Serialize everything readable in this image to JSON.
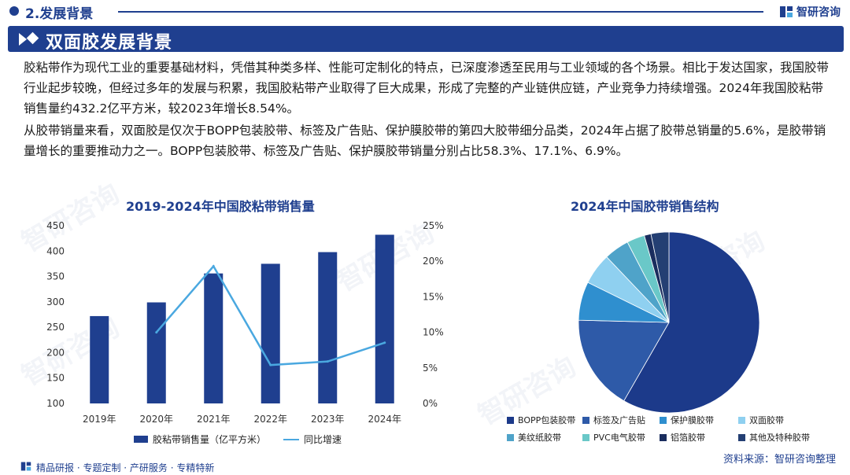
{
  "header": {
    "section": "2.发展背景",
    "brand": "智研咨询"
  },
  "banner": {
    "title": "双面胶发展背景"
  },
  "paragraphs": [
    "胶粘带作为现代工业的重要基础材料，凭借其种类多样、性能可定制化的特点，已深度渗透至民用与工业领域的各个场景。相比于发达国家，我国胶带行业起步较晚，但经过多年的发展与积累，我国胶粘带产业取得了巨大成果，形成了完整的产业链供应链，产业竞争力持续增强。2024年我国胶粘带销售量约432.2亿平方米，较2023年增长8.54%。",
    "从胶带销量来看，双面胶是仅次于BOPP包装胶带、标签及广告贴、保护膜胶带的第四大胶带细分品类，2024年占据了胶带总销量的5.6%，是胶带销量增长的重要推动力之一。BOPP包装胶带、标签及广告贴、保护膜胶带销量分别占比58.3%、17.1%、6.9%。"
  ],
  "colors": {
    "primary": "#1f3f8f",
    "line": "#4aa8e0"
  },
  "chart_data": [
    {
      "type": "bar",
      "title": "2019-2024年中国胶粘带销售量",
      "categories": [
        "2019年",
        "2020年",
        "2021年",
        "2022年",
        "2023年",
        "2024年"
      ],
      "series": [
        {
          "name": "胶粘带销售量（亿平方米）",
          "type": "bar",
          "axis": "left",
          "color": "#1f3f8f",
          "values": [
            272,
            299,
            356,
            375,
            398,
            432.2
          ]
        },
        {
          "name": "同比增速",
          "type": "line",
          "axis": "right",
          "color": "#4aa8e0",
          "values": [
            null,
            10.0,
            19.3,
            5.4,
            5.9,
            8.54
          ]
        }
      ],
      "ylim": [
        100,
        450
      ],
      "yticks": [
        "100",
        "150",
        "200",
        "250",
        "300",
        "350",
        "400",
        "450"
      ],
      "y2lim": [
        0,
        25
      ],
      "y2ticks": [
        "0%",
        "5%",
        "10%",
        "15%",
        "20%",
        "25%"
      ],
      "legend": "bottom"
    },
    {
      "type": "pie",
      "title": "2024年中国胶带销售结构",
      "labels": [
        "BOPP包装胶带",
        "标签及广告贴",
        "保护膜胶带",
        "双面胶带",
        "美纹纸胶带",
        "PVC电气胶带",
        "铝箔胶带",
        "其他及特种胶带"
      ],
      "values": [
        58.3,
        17.1,
        6.9,
        5.6,
        4.5,
        3.2,
        1.2,
        3.2
      ],
      "colors": [
        "#1c3a8a",
        "#2e5aa8",
        "#2f8fcf",
        "#8fd0f0",
        "#4fa3c9",
        "#6ac8c8",
        "#1a2d5e",
        "#243f73"
      ],
      "legend": "bottom"
    }
  ],
  "footer": {
    "left": "精品研报 · 专题定制 · 产研服务 · 专精特新",
    "source": "资料来源：智研咨询整理"
  }
}
